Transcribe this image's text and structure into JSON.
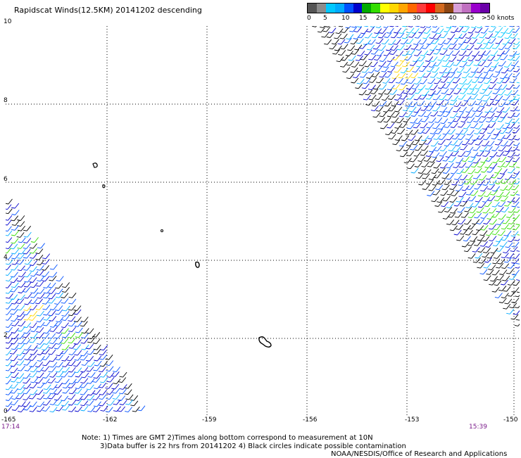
{
  "title": "Rapidscat Winds(12.5KM) 20141202 descending",
  "legend": {
    "colors": [
      "#555555",
      "#8c8c8c",
      "#00c8ff",
      "#00aaff",
      "#0050ff",
      "#0000cc",
      "#00aa00",
      "#33dd00",
      "#ffff00",
      "#ffd700",
      "#ffa500",
      "#ff6600",
      "#ff3b3b",
      "#ff0000",
      "#d2691e",
      "#8b4513",
      "#d8a0d8",
      "#c070c0",
      "#9900cc",
      "#6a00a8"
    ],
    "ticks": [
      "0",
      "5",
      "10",
      "15",
      "20",
      "25",
      "30",
      "35",
      "40",
      "45",
      ">50 knots"
    ]
  },
  "axes": {
    "y_ticks": [
      "10",
      "8",
      "6",
      "4",
      "2",
      "0"
    ],
    "x_ticks": [
      "-165",
      "-162",
      "-159",
      "-156",
      "-153",
      "-150"
    ],
    "time_left": "17:14",
    "time_right": "15:39"
  },
  "notes": {
    "line1": "Note: 1) Times are GMT 2)Times along bottom correspond to measurement at 10N",
    "line2": "3)Data buffer is 22 hrs from 20141202 4) Black circles indicate possible contamination",
    "credit": "NOAA/NESDIS/Office of Research and Applications"
  }
}
